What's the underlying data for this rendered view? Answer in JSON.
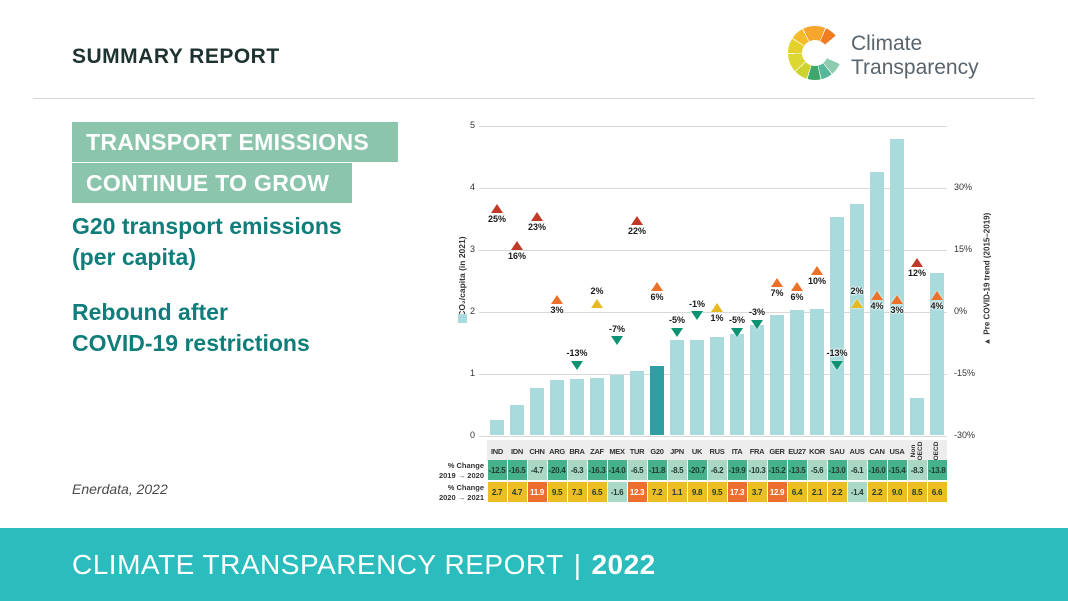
{
  "header": {
    "title": "SUMMARY REPORT"
  },
  "logo": {
    "line1": "Climate",
    "line2": "Transparency"
  },
  "intro": {
    "banner_line1": "TRANSPORT EMISSIONS",
    "banner_line2": "CONTINUE TO GROW",
    "subtitle1_line1": "G20 transport emissions",
    "subtitle1_line2": "(per capita)",
    "subtitle2_line1": "Rebound after",
    "subtitle2_line2": "COVID-19 restrictions",
    "source": "Enerdata, 2022"
  },
  "footer": {
    "text": "CLIMATE TRANSPARENCY REPORT",
    "separator": "|",
    "year": "2022"
  },
  "chart_data": {
    "type": "bar",
    "title": "G20 transport emissions (per capita)",
    "categories": [
      "IND",
      "IDN",
      "CHN",
      "ARG",
      "BRA",
      "ZAF",
      "MEX",
      "TUR",
      "G20",
      "JPN",
      "UK",
      "RUS",
      "ITA",
      "FRA",
      "GER",
      "EU27",
      "KOR",
      "SAU",
      "AUS",
      "CAN",
      "USA",
      "Non OECD",
      "OECD"
    ],
    "rotated_label_indexes": [
      21,
      22
    ],
    "highlight_category": "G20",
    "series": [
      {
        "name": "tCO₂/capita (in 2021)",
        "type": "bar",
        "values": [
          0.25,
          0.5,
          0.77,
          0.9,
          0.92,
          0.93,
          0.98,
          1.05,
          1.12,
          1.55,
          1.55,
          1.59,
          1.64,
          1.78,
          1.95,
          2.02,
          2.04,
          3.53,
          3.74,
          4.26,
          4.79,
          0.6,
          2.63
        ]
      },
      {
        "name": "Pre COVID-19 trend (2015–2019)",
        "type": "marker",
        "values_pct": [
          25,
          16,
          23,
          3,
          -13,
          2,
          -7,
          22,
          6,
          -5,
          -1,
          1,
          -5,
          -3,
          7,
          6,
          10,
          -13,
          2,
          4,
          3,
          12,
          4
        ]
      }
    ],
    "marker_styles": {
      "colors": [
        "red",
        "red",
        "red",
        "orange",
        "green",
        "yellow",
        "green",
        "red",
        "orange",
        "green",
        "green",
        "yellow",
        "green",
        "green",
        "orange",
        "orange",
        "orange",
        "green",
        "yellow",
        "orange",
        "orange",
        "red",
        "orange"
      ],
      "label_positions": [
        "below",
        "below",
        "below",
        "below",
        "above",
        "above",
        "above",
        "below",
        "below",
        "above",
        "above",
        "below",
        "above",
        "above",
        "below",
        "below",
        "below",
        "above",
        "above",
        "below",
        "below",
        "below",
        "below"
      ]
    },
    "left_axis": {
      "title": "tCO₂/capita (in 2021)",
      "ticks": [
        0,
        1,
        2,
        3,
        4,
        5
      ],
      "range": [
        0,
        5
      ],
      "grid": true
    },
    "right_axis": {
      "title": "Pre COVID-19 trend (2015–2019)",
      "legend_icon": "▲",
      "ticks_pct": [
        30,
        15,
        0,
        -15,
        -30
      ],
      "range_pct": [
        -33,
        36
      ]
    },
    "table_rows": [
      {
        "label": "% Change\n2019 → 2020",
        "values": [
          "-12.5",
          "-16.5",
          "-4.7",
          "-20.4",
          "-6.3",
          "-16.3",
          "-14.0",
          "-6.5",
          "-11.8",
          "-8.5",
          "-20.7",
          "-6.2",
          "-19.9",
          "-10.3",
          "-15.2",
          "-13.5",
          "-5.6",
          "-13.0",
          "-6.1",
          "-16.0",
          "-15.4",
          "-8.3",
          "-13.8"
        ],
        "colors": [
          "m",
          "m",
          "l",
          "m",
          "l",
          "m",
          "m",
          "l",
          "m",
          "l",
          "m",
          "l",
          "m",
          "l",
          "m",
          "m",
          "l",
          "m",
          "l",
          "m",
          "m",
          "l",
          "m"
        ]
      },
      {
        "label": "% Change\n2020 → 2021",
        "values": [
          "2.7",
          "4.7",
          "11.9",
          "9.5",
          "7.3",
          "6.5",
          "-1.6",
          "12.3",
          "7.2",
          "1.1",
          "9.8",
          "9.5",
          "17.3",
          "3.7",
          "12.9",
          "6.4",
          "2.1",
          "2.2",
          "-1.4",
          "2.2",
          "9.0",
          "8.5",
          "6.6"
        ],
        "colors": [
          "y",
          "y",
          "o",
          "y",
          "y",
          "y",
          "l",
          "o",
          "y",
          "y",
          "y",
          "y",
          "o",
          "y",
          "o",
          "y",
          "y",
          "y",
          "l",
          "y",
          "y",
          "y",
          "y"
        ]
      }
    ],
    "palette": {
      "bar": "#a9dbdc",
      "bar_highlight": "#2f9fa4",
      "red": "#c13a28",
      "orange": "#ed7128",
      "yellow": "#e8ba22",
      "green": "#0d9371",
      "cell_m": "#46b28b",
      "cell_l": "#abd7c5",
      "cell_y": "#ecbe24",
      "cell_o": "#ed6f30",
      "band": "#ededed",
      "grid": "#d8d8d8"
    }
  }
}
